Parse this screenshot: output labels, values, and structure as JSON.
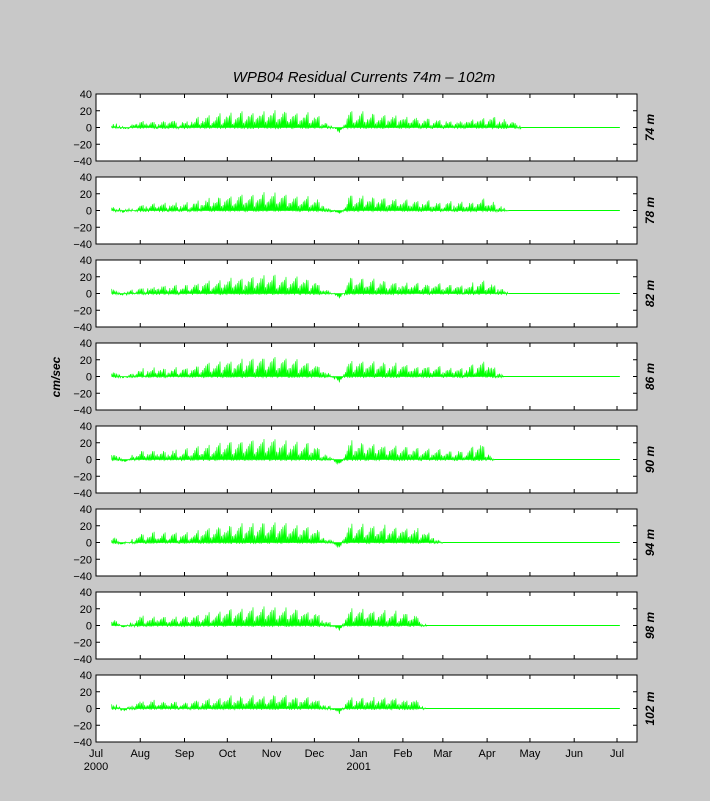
{
  "chart_data": {
    "type": "area",
    "title": "WPB04  Residual Currents 74m – 102m",
    "ylabel": "cm/sec",
    "ylim": [
      -40,
      40
    ],
    "yticks": [
      40,
      20,
      0,
      -20,
      -40
    ],
    "ytick_labels": [
      "40",
      "20",
      "0",
      "−20",
      "−40"
    ],
    "x_range": [
      "2000-07-01",
      "2001-07-15"
    ],
    "xticks": [
      {
        "date": "2000-07-01",
        "label": "Jul",
        "sublabel": "2000"
      },
      {
        "date": "2000-08-01",
        "label": "Aug",
        "sublabel": ""
      },
      {
        "date": "2000-09-01",
        "label": "Sep",
        "sublabel": ""
      },
      {
        "date": "2000-10-01",
        "label": "Oct",
        "sublabel": ""
      },
      {
        "date": "2000-11-01",
        "label": "Nov",
        "sublabel": ""
      },
      {
        "date": "2000-12-01",
        "label": "Dec",
        "sublabel": ""
      },
      {
        "date": "2001-01-01",
        "label": "Jan",
        "sublabel": "2001"
      },
      {
        "date": "2001-02-01",
        "label": "Feb",
        "sublabel": ""
      },
      {
        "date": "2001-03-01",
        "label": "Mar",
        "sublabel": ""
      },
      {
        "date": "2001-04-01",
        "label": "Apr",
        "sublabel": ""
      },
      {
        "date": "2001-05-01",
        "label": "May",
        "sublabel": ""
      },
      {
        "date": "2001-06-01",
        "label": "Jun",
        "sublabel": ""
      },
      {
        "date": "2001-07-01",
        "label": "Jul",
        "sublabel": ""
      }
    ],
    "grid": false,
    "series_color": "#00ff00",
    "panels": [
      {
        "depth_label": "74 m",
        "start": "2000-07-12",
        "end": "2001-04-25",
        "peak": 22,
        "points": [
          [
            "2000-07-12",
            8
          ],
          [
            "2000-07-20",
            -2
          ],
          [
            "2000-08-01",
            6
          ],
          [
            "2000-09-01",
            7
          ],
          [
            "2000-10-01",
            15
          ],
          [
            "2000-11-01",
            18
          ],
          [
            "2000-12-01",
            14
          ],
          [
            "2000-12-19",
            -6
          ],
          [
            "2000-12-25",
            17
          ],
          [
            "2001-01-15",
            14
          ],
          [
            "2001-02-15",
            9
          ],
          [
            "2001-03-15",
            7
          ],
          [
            "2001-04-01",
            12
          ],
          [
            "2001-04-20",
            6
          ],
          [
            "2001-04-25",
            0
          ]
        ]
      },
      {
        "depth_label": "78 m",
        "start": "2000-07-12",
        "end": "2001-04-16",
        "peak": 22,
        "points": [
          [
            "2000-07-12",
            8
          ],
          [
            "2000-07-20",
            -2
          ],
          [
            "2000-08-01",
            6
          ],
          [
            "2000-09-01",
            7
          ],
          [
            "2000-10-01",
            16
          ],
          [
            "2000-11-01",
            19
          ],
          [
            "2000-12-01",
            14
          ],
          [
            "2000-12-19",
            -6
          ],
          [
            "2000-12-25",
            16
          ],
          [
            "2001-01-15",
            14
          ],
          [
            "2001-02-15",
            10
          ],
          [
            "2001-03-15",
            8
          ],
          [
            "2001-04-01",
            12
          ],
          [
            "2001-04-16",
            0
          ]
        ]
      },
      {
        "depth_label": "82 m",
        "start": "2000-07-12",
        "end": "2001-04-16",
        "peak": 24,
        "points": [
          [
            "2000-07-12",
            10
          ],
          [
            "2000-07-20",
            -2
          ],
          [
            "2000-08-01",
            7
          ],
          [
            "2000-09-01",
            8
          ],
          [
            "2000-10-01",
            16
          ],
          [
            "2000-11-01",
            20
          ],
          [
            "2000-12-01",
            14
          ],
          [
            "2000-12-19",
            -7
          ],
          [
            "2000-12-25",
            17
          ],
          [
            "2001-01-15",
            14
          ],
          [
            "2001-02-15",
            10
          ],
          [
            "2001-03-15",
            8
          ],
          [
            "2001-04-01",
            14
          ],
          [
            "2001-04-16",
            0
          ]
        ]
      },
      {
        "depth_label": "86 m",
        "start": "2000-07-12",
        "end": "2001-04-12",
        "peak": 26,
        "points": [
          [
            "2000-07-12",
            11
          ],
          [
            "2000-07-20",
            -2
          ],
          [
            "2000-08-01",
            8
          ],
          [
            "2000-09-01",
            9
          ],
          [
            "2000-10-01",
            17
          ],
          [
            "2000-11-01",
            21
          ],
          [
            "2000-12-01",
            15
          ],
          [
            "2000-12-19",
            -7
          ],
          [
            "2000-12-25",
            18
          ],
          [
            "2001-01-15",
            15
          ],
          [
            "2001-02-15",
            11
          ],
          [
            "2001-03-15",
            9
          ],
          [
            "2001-04-01",
            17
          ],
          [
            "2001-04-12",
            0
          ]
        ]
      },
      {
        "depth_label": "90 m",
        "start": "2000-07-12",
        "end": "2001-04-06",
        "peak": 27,
        "points": [
          [
            "2000-07-12",
            12
          ],
          [
            "2000-07-20",
            -3
          ],
          [
            "2000-08-01",
            9
          ],
          [
            "2000-09-01",
            10
          ],
          [
            "2000-10-01",
            18
          ],
          [
            "2000-11-01",
            22
          ],
          [
            "2000-12-01",
            16
          ],
          [
            "2000-12-19",
            -7
          ],
          [
            "2000-12-25",
            19
          ],
          [
            "2001-01-15",
            16
          ],
          [
            "2001-02-15",
            12
          ],
          [
            "2001-03-15",
            9
          ],
          [
            "2001-03-28",
            18
          ],
          [
            "2001-04-06",
            0
          ]
        ]
      },
      {
        "depth_label": "94 m",
        "start": "2000-07-12",
        "end": "2001-03-01",
        "peak": 27,
        "points": [
          [
            "2000-07-12",
            12
          ],
          [
            "2000-07-20",
            -3
          ],
          [
            "2000-08-01",
            10
          ],
          [
            "2000-09-01",
            10
          ],
          [
            "2000-10-01",
            18
          ],
          [
            "2000-11-01",
            22
          ],
          [
            "2000-12-01",
            16
          ],
          [
            "2000-12-19",
            -7
          ],
          [
            "2000-12-25",
            19
          ],
          [
            "2001-01-15",
            18
          ],
          [
            "2001-02-15",
            14
          ],
          [
            "2001-03-01",
            0
          ]
        ]
      },
      {
        "depth_label": "98 m",
        "start": "2000-07-12",
        "end": "2001-02-17",
        "peak": 24,
        "points": [
          [
            "2000-07-12",
            12
          ],
          [
            "2000-07-20",
            -3
          ],
          [
            "2000-08-01",
            10
          ],
          [
            "2000-09-01",
            9
          ],
          [
            "2000-10-01",
            17
          ],
          [
            "2000-11-01",
            20
          ],
          [
            "2000-12-01",
            15
          ],
          [
            "2000-12-19",
            -6
          ],
          [
            "2000-12-25",
            18
          ],
          [
            "2001-01-15",
            16
          ],
          [
            "2001-02-10",
            12
          ],
          [
            "2001-02-17",
            0
          ]
        ]
      },
      {
        "depth_label": "102 m",
        "start": "2000-07-12",
        "end": "2001-02-17",
        "peak": 17,
        "points": [
          [
            "2000-07-12",
            10
          ],
          [
            "2000-07-20",
            -3
          ],
          [
            "2000-08-01",
            8
          ],
          [
            "2000-09-01",
            7
          ],
          [
            "2000-10-01",
            12
          ],
          [
            "2000-11-01",
            14
          ],
          [
            "2000-12-01",
            11
          ],
          [
            "2000-12-19",
            -5
          ],
          [
            "2000-12-25",
            12
          ],
          [
            "2001-01-15",
            11
          ],
          [
            "2001-02-10",
            9
          ],
          [
            "2001-02-17",
            0
          ]
        ]
      }
    ]
  }
}
